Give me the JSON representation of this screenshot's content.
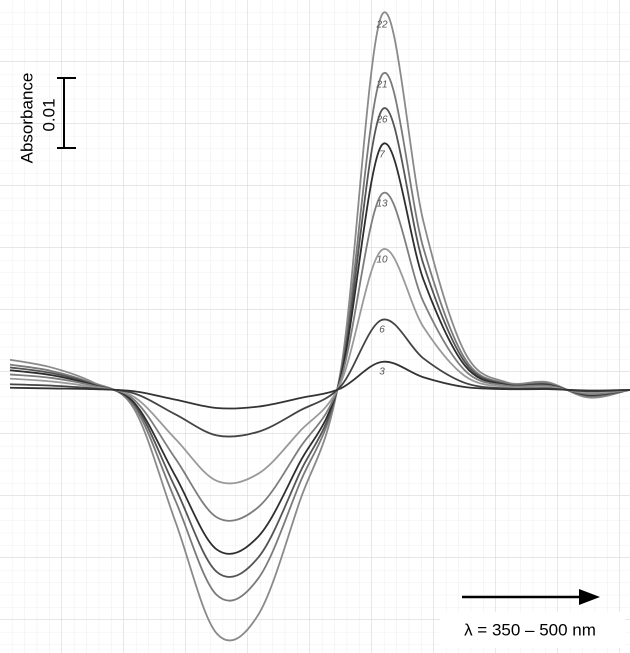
{
  "chart_data": {
    "type": "line",
    "y_label": "Absorbance",
    "x_label": "λ = 350 – 500 nm",
    "scale_bar": 0.01,
    "grid": true,
    "x": [
      350,
      360,
      370,
      380,
      390,
      400,
      410,
      420,
      430,
      440,
      450,
      460,
      470,
      480,
      490,
      500
    ],
    "xlim": [
      350,
      500
    ],
    "ylim": [
      -0.0376,
      0.0557
    ],
    "series": [
      {
        "name": "22",
        "color": "#8a8a8a",
        "values": [
          0.0043,
          0.0032,
          0.0011,
          -0.0027,
          -0.0188,
          -0.0348,
          -0.0322,
          -0.0161,
          0.0027,
          0.0536,
          0.0241,
          0.0054,
          0.0011,
          0.0011,
          -0.0011,
          0
        ]
      },
      {
        "name": "21",
        "color": "#7a7a7a",
        "values": [
          0.0036,
          0.0027,
          0.0009,
          -0.0023,
          -0.0158,
          -0.0293,
          -0.027,
          -0.0135,
          0.0023,
          0.045,
          0.0203,
          0.0045,
          0.0009,
          0.0009,
          -0.0009,
          0
        ]
      },
      {
        "name": "26",
        "color": "#555555",
        "values": [
          0.0032,
          0.0024,
          0.0008,
          -0.002,
          -0.014,
          -0.026,
          -0.024,
          -0.012,
          0.002,
          0.04,
          0.018,
          0.004,
          0.0008,
          0.0008,
          -0.0008,
          0
        ]
      },
      {
        "name": "7",
        "color": "#2e2e2e",
        "values": [
          0.0028,
          0.0021,
          0.0007,
          -0.0018,
          -0.0123,
          -0.0228,
          -0.021,
          -0.0105,
          0.0018,
          0.035,
          0.0158,
          0.0035,
          0.0007,
          0.0007,
          -0.0007,
          0
        ]
      },
      {
        "name": "13",
        "color": "#7d7d7d",
        "values": [
          0.0022,
          0.0017,
          0.0006,
          -0.0014,
          -0.0098,
          -0.0182,
          -0.0168,
          -0.0084,
          0.0014,
          0.028,
          0.0126,
          0.0028,
          0.0006,
          0.0006,
          -0.0006,
          0
        ]
      },
      {
        "name": "10",
        "color": "#9a9a9a",
        "values": [
          0.0016,
          0.0012,
          0.0004,
          -0.001,
          -0.007,
          -0.013,
          -0.012,
          -0.006,
          0.001,
          0.02,
          0.009,
          0.002,
          0.0004,
          0.0004,
          -0.0004,
          0
        ]
      },
      {
        "name": "6",
        "color": "#444444",
        "values": [
          0.0008,
          0.0006,
          0.0002,
          -0.0005,
          -0.0035,
          -0.0065,
          -0.006,
          -0.003,
          0.0005,
          0.01,
          0.0045,
          0.001,
          0.0002,
          0.0002,
          -0.0002,
          0
        ]
      },
      {
        "name": "3",
        "color": "#333333",
        "values": [
          0.0003,
          0.0002,
          0.0001,
          -0.0002,
          -0.0014,
          -0.0026,
          -0.0024,
          -0.0012,
          0.0002,
          0.004,
          0.0018,
          0.0004,
          0.0001,
          0.0001,
          -0.0001,
          0
        ]
      }
    ]
  }
}
